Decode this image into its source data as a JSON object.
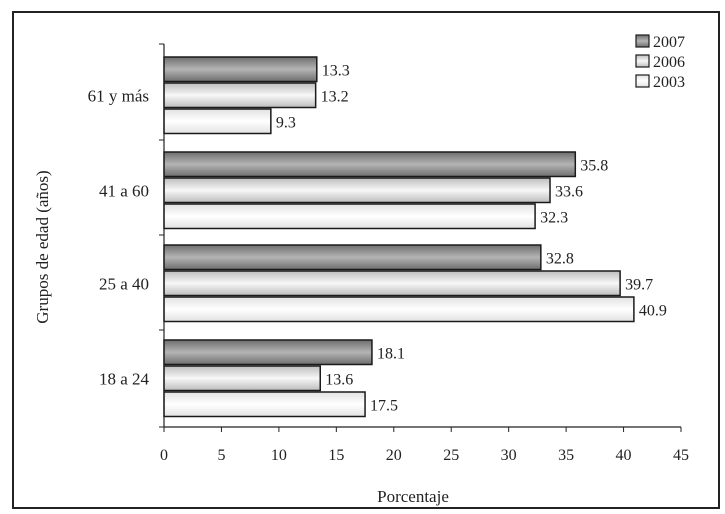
{
  "chart_data": {
    "type": "bar",
    "orientation": "horizontal",
    "categories": [
      "61 y más",
      "41 a 60",
      "25 a 40",
      "18 a 24"
    ],
    "series": [
      {
        "name": "2007",
        "values": [
          13.3,
          35.8,
          32.8,
          18.1
        ],
        "color": "#8c8c8c"
      },
      {
        "name": "2006",
        "values": [
          13.2,
          33.6,
          39.7,
          13.6
        ],
        "color": "#cfcfcf"
      },
      {
        "name": "2003",
        "values": [
          9.3,
          32.3,
          40.9,
          17.5
        ],
        "color": "#f2f2f2"
      }
    ],
    "data_labels": [
      [
        "13.3",
        "13.2",
        "9.3"
      ],
      [
        "35.8",
        "33.6",
        "32.3"
      ],
      [
        "32.8",
        "39.7",
        "40.9"
      ],
      [
        "18.1",
        "13.6",
        "17.5"
      ]
    ],
    "xlabel": "Porcentaje",
    "ylabel": "Grupos de edad (años)",
    "xlim": [
      0,
      45
    ],
    "xticks": [
      0,
      5,
      10,
      15,
      20,
      25,
      30,
      35,
      40,
      45
    ],
    "xtick_labels": [
      "0",
      "5",
      "10",
      "15",
      "20",
      "25",
      "30",
      "35",
      "40",
      "45"
    ],
    "legend": {
      "placement": "top-right",
      "entries": [
        "2007",
        "2006",
        "2003"
      ]
    },
    "grid": false
  }
}
